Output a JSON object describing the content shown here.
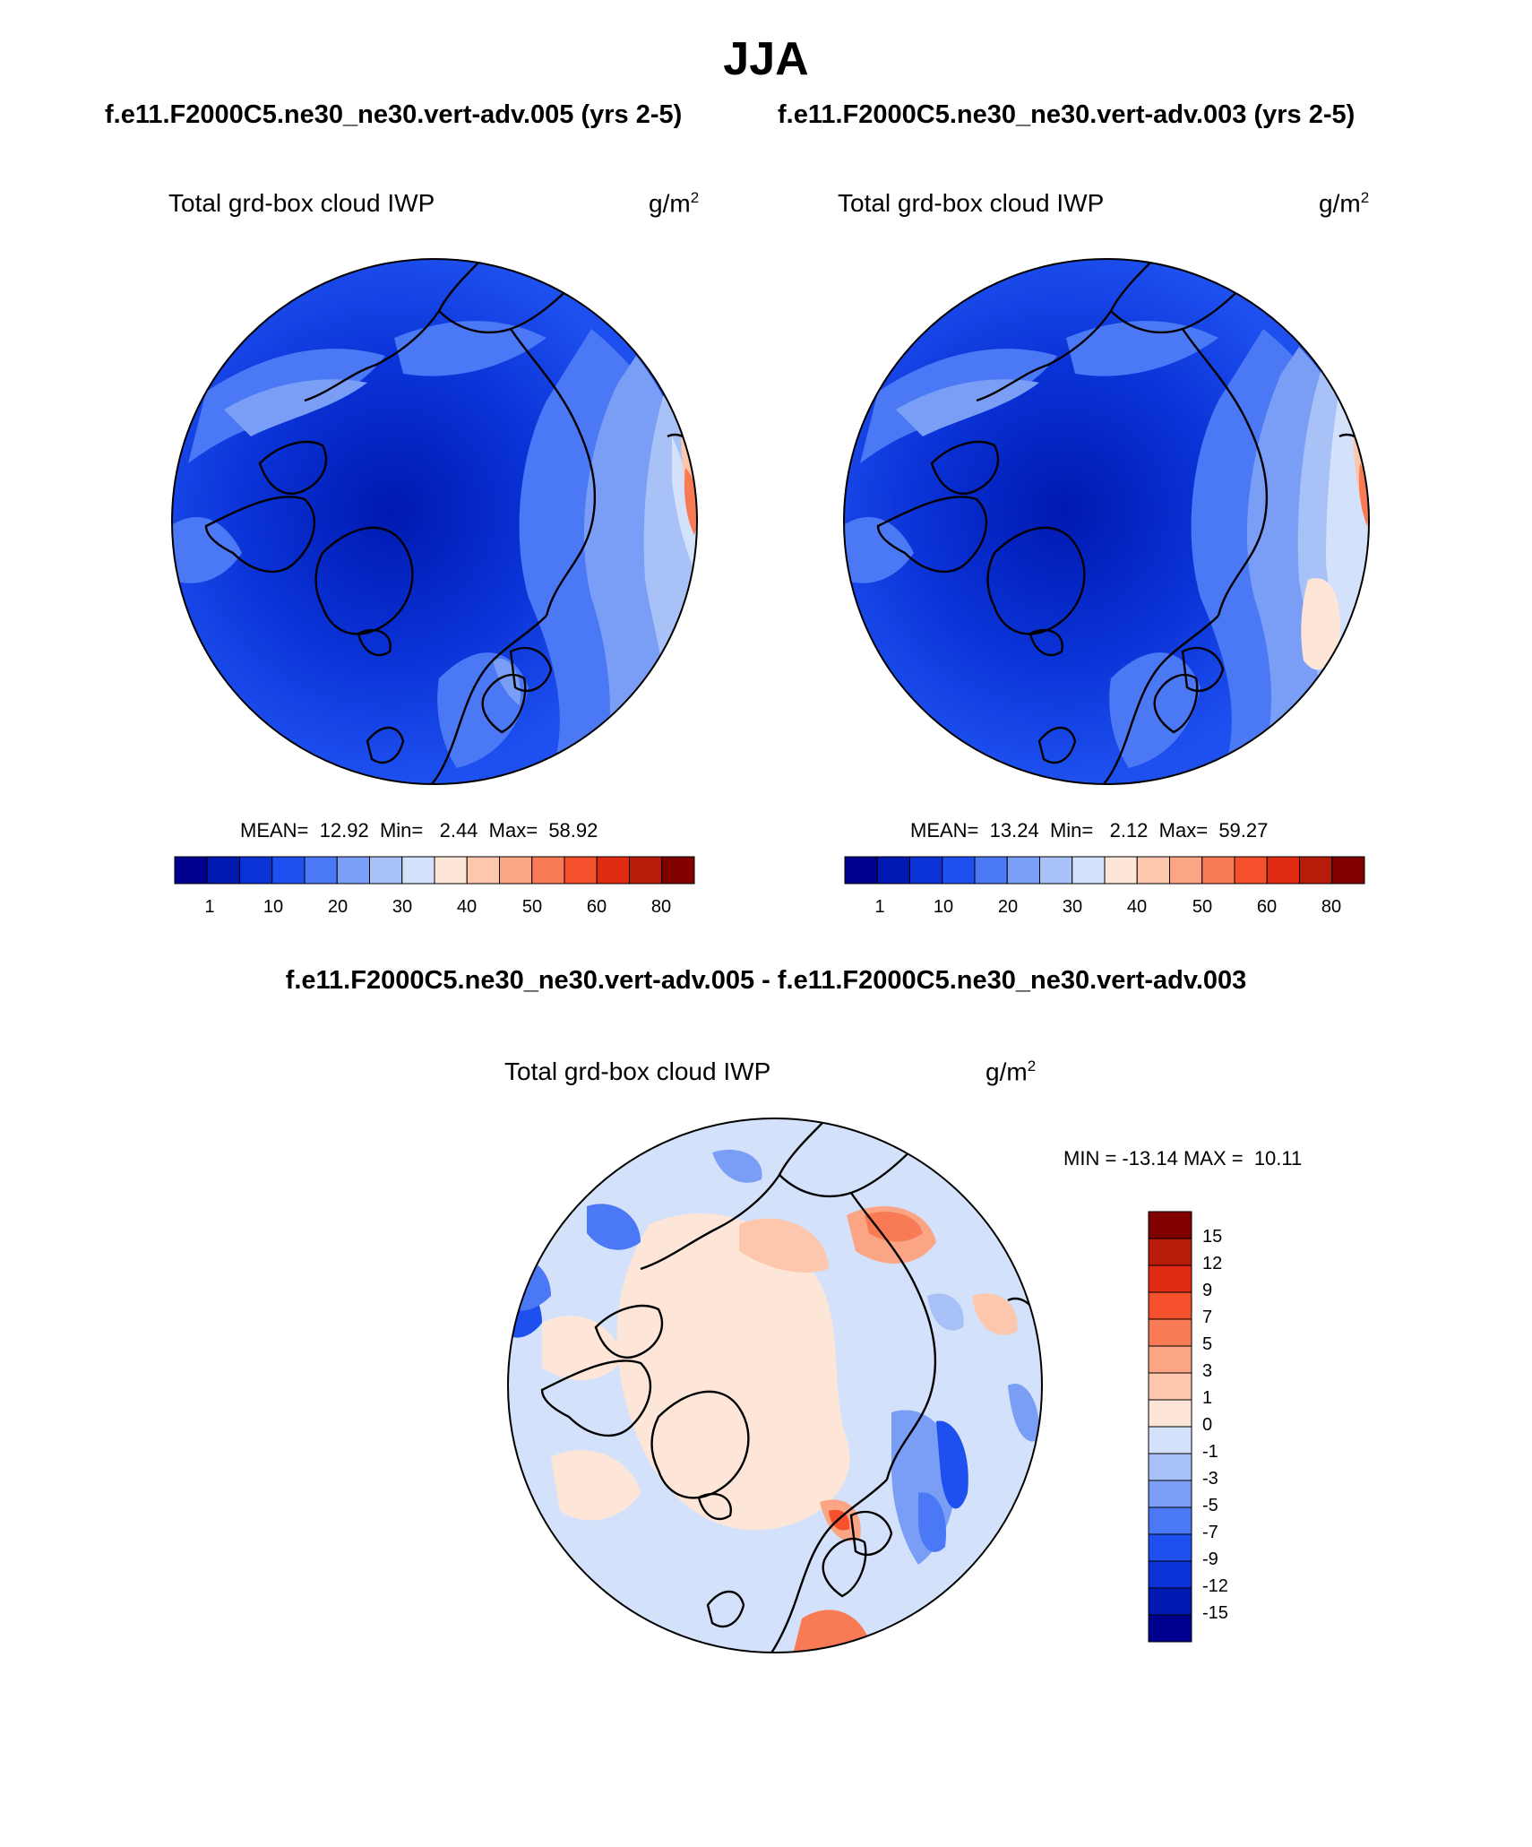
{
  "season": "JJA",
  "case_titles": {
    "left": "f.e11.F2000C5.ne30_ne30.vert-adv.005 (yrs 2-5)",
    "right": "f.e11.F2000C5.ne30_ne30.vert-adv.003 (yrs 2-5)"
  },
  "diff_title": "f.e11.F2000C5.ne30_ne30.vert-adv.005 - f.e11.F2000C5.ne30_ne30.vert-adv.003",
  "panels": [
    {
      "label": "Total grd-box cloud IWP",
      "units_base": "g/m",
      "units_exp": "2",
      "stats": {
        "mean": "12.92",
        "min": "2.44",
        "max": "58.92"
      }
    },
    {
      "label": "Total grd-box cloud IWP",
      "units_base": "g/m",
      "units_exp": "2",
      "stats": {
        "mean": "13.24",
        "min": "2.12",
        "max": "59.27"
      }
    }
  ],
  "diff_panel": {
    "label": "Total grd-box cloud IWP",
    "units_base": "g/m",
    "units_exp": "2",
    "min": "-13.14",
    "max": "10.11"
  },
  "stat_labels": {
    "mean": "MEAN=",
    "min": "Min=",
    "max": "Max="
  },
  "diff_stat_labels": {
    "min": "MIN =",
    "max": "MAX ="
  },
  "abs_colorbar": {
    "ticks": [
      "1",
      "10",
      "20",
      "30",
      "40",
      "50",
      "60",
      "80"
    ],
    "colors": [
      "#00008f",
      "#0019b0",
      "#0a32d6",
      "#1e50f0",
      "#4b78f5",
      "#7a9ef5",
      "#a8c2f7",
      "#d3e2fa",
      "#fde6d8",
      "#fcc7ad",
      "#fba585",
      "#f97b55",
      "#f4512c",
      "#e02b12",
      "#b71c0a",
      "#800000"
    ]
  },
  "diff_colorbar": {
    "ticks": [
      "15",
      "12",
      "9",
      "7",
      "5",
      "3",
      "1",
      "0",
      "-1",
      "-3",
      "-5",
      "-7",
      "-9",
      "-12",
      "-15"
    ],
    "colors": [
      "#800000",
      "#b71c0a",
      "#e02b12",
      "#f4512c",
      "#f97b55",
      "#fba585",
      "#fcc7ad",
      "#fde6d8",
      "#d3e2fa",
      "#a8c2f7",
      "#7a9ef5",
      "#4b78f5",
      "#1e50f0",
      "#0a32d6",
      "#0019b0",
      "#00008f"
    ]
  }
}
